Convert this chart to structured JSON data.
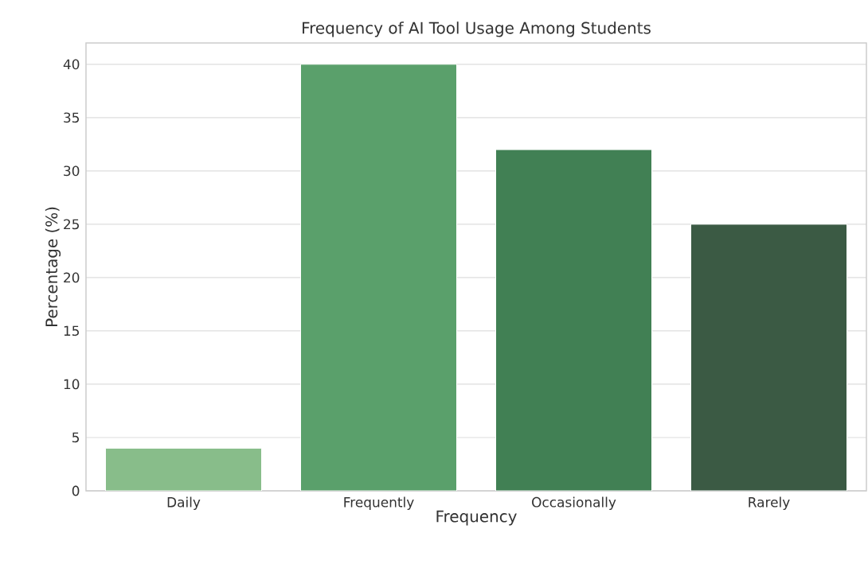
{
  "chart_data": {
    "type": "bar",
    "title": "Frequency of AI Tool Usage Among Students",
    "xlabel": "Frequency",
    "ylabel": "Percentage (%)",
    "categories": [
      "Daily",
      "Frequently",
      "Occasionally",
      "Rarely"
    ],
    "values": [
      4,
      40,
      32,
      25
    ],
    "colors": [
      "#88bd8a",
      "#5aa06b",
      "#418054",
      "#3b5a44"
    ],
    "ylim": [
      0,
      42
    ],
    "yticks": [
      0,
      5,
      10,
      15,
      20,
      25,
      30,
      35,
      40
    ],
    "grid": "y"
  }
}
